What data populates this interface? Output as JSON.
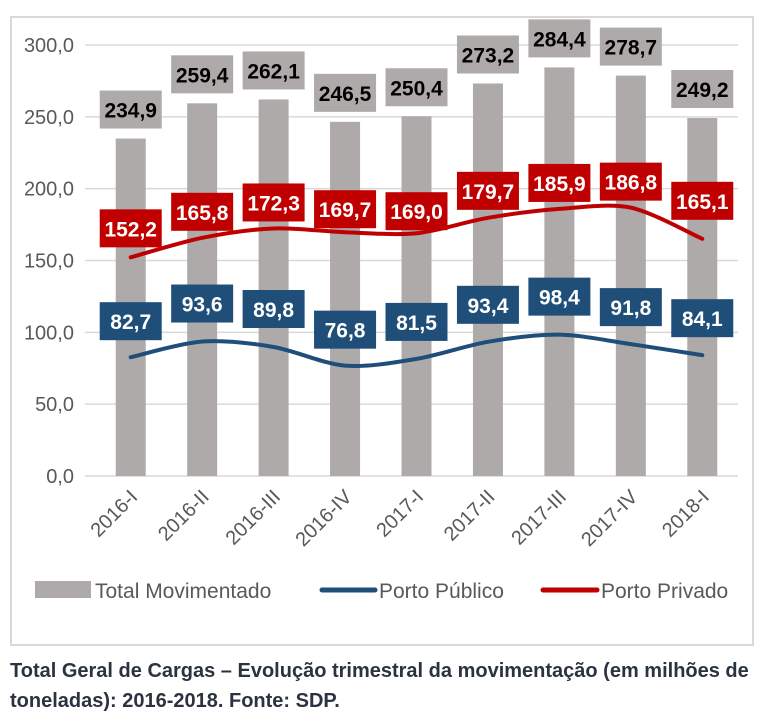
{
  "chart_data": {
    "type": "bar",
    "title": "",
    "xlabel": "",
    "ylabel": "",
    "ylim": [
      0,
      300
    ],
    "yticks": [
      "0,0",
      "50,0",
      "100,0",
      "150,0",
      "200,0",
      "250,0",
      "300,0"
    ],
    "ytick_values": [
      0,
      50,
      100,
      150,
      200,
      250,
      300
    ],
    "grid": true,
    "categories": [
      "2016-I",
      "2016-II",
      "2016-III",
      "2016-IV",
      "2017-I",
      "2017-II",
      "2017-III",
      "2017-IV",
      "2018-I"
    ],
    "series": [
      {
        "name": "Total Movimentado",
        "type": "bar",
        "color": "#aeaaaa",
        "values": [
          234.9,
          259.4,
          262.1,
          246.5,
          250.4,
          273.2,
          284.4,
          278.7,
          249.2
        ],
        "labels": [
          "234,9",
          "259,4",
          "262,1",
          "246,5",
          "250,4",
          "273,2",
          "284,4",
          "278,7",
          "249,2"
        ],
        "label_bg": "#aeaaaa",
        "label_color": "#000000"
      },
      {
        "name": "Porto Público",
        "type": "line",
        "color": "#1f4e79",
        "values": [
          82.7,
          93.6,
          89.8,
          76.8,
          81.5,
          93.4,
          98.4,
          91.8,
          84.1
        ],
        "labels": [
          "82,7",
          "93,6",
          "89,8",
          "76,8",
          "81,5",
          "93,4",
          "98,4",
          "91,8",
          "84,1"
        ],
        "label_bg": "#1f4e79",
        "label_color": "#ffffff"
      },
      {
        "name": "Porto Privado",
        "type": "line",
        "color": "#c00000",
        "values": [
          152.2,
          165.8,
          172.3,
          169.7,
          169.0,
          179.7,
          185.9,
          186.8,
          165.1
        ],
        "labels": [
          "152,2",
          "165,8",
          "172,3",
          "169,7",
          "169,0",
          "179,7",
          "185,9",
          "186,8",
          "165,1"
        ],
        "label_bg": "#c00000",
        "label_color": "#ffffff"
      }
    ],
    "legend": {
      "position": "bottom",
      "entries": [
        "Total Movimentado",
        "Porto Público",
        "Porto Privado"
      ]
    }
  },
  "caption": "Total Geral de Cargas – Evolução trimestral da movimentação (em milhões de toneladas): 2016-2018. Fonte: SDP."
}
